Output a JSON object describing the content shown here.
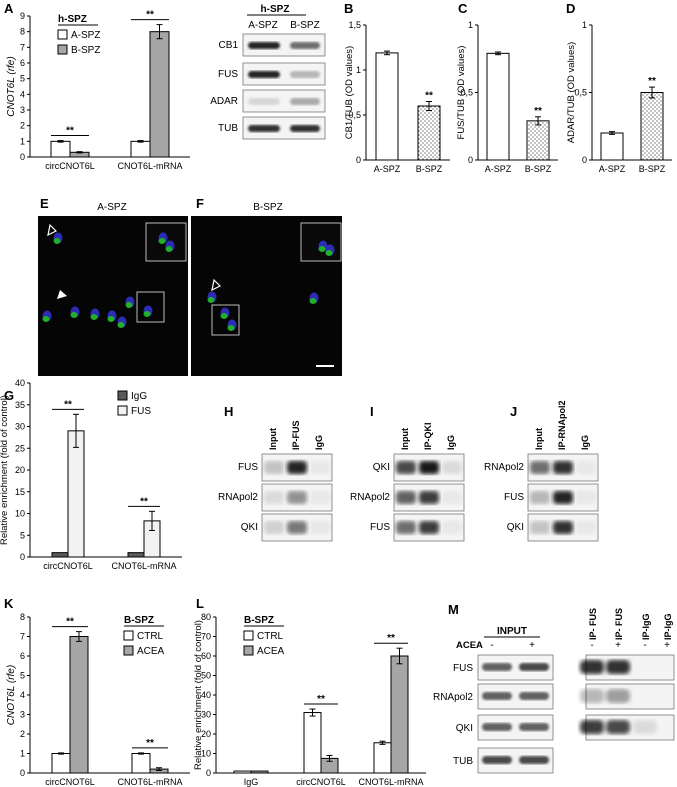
{
  "panel_letters": [
    "A",
    "B",
    "C",
    "D",
    "E",
    "F",
    "G",
    "H",
    "I",
    "J",
    "K",
    "L",
    "M"
  ],
  "colors": {
    "white_bar": "#ffffff",
    "grey_bar": "#a6a6a6",
    "dark_bar": "#595959",
    "light_bar": "#f2f2f2",
    "cell_blue": "#2c2cb4",
    "cell_green": "#1fbf1f"
  },
  "chart_data": [
    {
      "panel": "A",
      "type": "bar",
      "ylabel": "CNOT6L (rfe)",
      "ylim": [
        0,
        9
      ],
      "yticks": [
        0,
        1,
        2,
        3,
        4,
        5,
        6,
        7,
        8,
        9
      ],
      "legend_title": "h-SPZ",
      "categories": [
        "circCNOT6L",
        "CNOT6L-mRNA"
      ],
      "series": [
        {
          "name": "A-SPZ",
          "values": [
            1.0,
            1.0
          ],
          "err": [
            0.05,
            0.05
          ],
          "fill": "#ffffff"
        },
        {
          "name": "B-SPZ",
          "values": [
            0.3,
            8.0
          ],
          "err": [
            0.04,
            0.45
          ],
          "fill": "#a6a6a6"
        }
      ],
      "sig": [
        "**",
        "**"
      ]
    },
    {
      "panel": "B",
      "type": "bar",
      "ylabel": "CB1/TUB (OD values)",
      "ylim": [
        0,
        1.5
      ],
      "yticks": [
        "0",
        "0,5",
        "1",
        "1,5"
      ],
      "ytick_vals": [
        0,
        0.5,
        1,
        1.5
      ],
      "categories": [
        "A-SPZ",
        "B-SPZ"
      ],
      "values": [
        1.19,
        0.6
      ],
      "err": [
        0.02,
        0.05
      ],
      "pattern": [
        "plain",
        "dotted"
      ],
      "sig": [
        "",
        "**"
      ]
    },
    {
      "panel": "C",
      "type": "bar",
      "ylabel": "FUS/TUB (OD values)",
      "ylim": [
        0,
        1
      ],
      "yticks": [
        "0",
        "0,5",
        "1"
      ],
      "ytick_vals": [
        0,
        0.5,
        1
      ],
      "categories": [
        "A-SPZ",
        "B-SPZ"
      ],
      "values": [
        0.79,
        0.29
      ],
      "err": [
        0.01,
        0.03
      ],
      "pattern": [
        "plain",
        "dotted"
      ],
      "sig": [
        "",
        "**"
      ]
    },
    {
      "panel": "D",
      "type": "bar",
      "ylabel": "ADAR/TUB (OD values)",
      "ylim": [
        0,
        1
      ],
      "yticks": [
        "0",
        "0,5",
        "1"
      ],
      "ytick_vals": [
        0,
        0.5,
        1
      ],
      "categories": [
        "A-SPZ",
        "B-SPZ"
      ],
      "values": [
        0.2,
        0.5
      ],
      "err": [
        0.01,
        0.04
      ],
      "pattern": [
        "plain",
        "dotted"
      ],
      "sig": [
        "",
        "**"
      ]
    },
    {
      "panel": "G",
      "type": "bar",
      "ylabel": "Relative enrichment (fold of control)",
      "ylim": [
        0,
        40
      ],
      "yticks": [
        0,
        5,
        10,
        15,
        20,
        25,
        30,
        35,
        40
      ],
      "categories": [
        "circCNOT6L",
        "CNOT6L-mRNA"
      ],
      "series": [
        {
          "name": "IgG",
          "values": [
            1.0,
            1.0
          ],
          "err": [
            0,
            0
          ],
          "fill": "#595959"
        },
        {
          "name": "FUS",
          "values": [
            29,
            8.3
          ],
          "err": [
            3.8,
            2.2
          ],
          "fill": "#f2f2f2"
        }
      ],
      "sig": [
        "**",
        "**"
      ]
    },
    {
      "panel": "K",
      "type": "bar",
      "ylabel": "CNOT6L (rfe)",
      "ylim": [
        0,
        8
      ],
      "yticks": [
        0,
        1,
        2,
        3,
        4,
        5,
        6,
        7,
        8
      ],
      "legend_title": "B-SPZ",
      "categories": [
        "circCNOT6L",
        "CNOT6L-mRNA"
      ],
      "series": [
        {
          "name": "CTRL",
          "values": [
            1.0,
            1.0
          ],
          "err": [
            0.03,
            0.03
          ],
          "fill": "#ffffff"
        },
        {
          "name": "ACEA",
          "values": [
            7.0,
            0.2
          ],
          "err": [
            0.25,
            0.07
          ],
          "fill": "#a6a6a6"
        }
      ],
      "sig": [
        "**",
        "**"
      ]
    },
    {
      "panel": "L",
      "type": "bar",
      "ylabel": "Relative enrichment (fold of control)",
      "ylim": [
        0,
        80
      ],
      "yticks": [
        0,
        10,
        20,
        30,
        40,
        50,
        60,
        70,
        80
      ],
      "legend_title": "B-SPZ",
      "categories": [
        "IgG",
        "circCNOT6L",
        "CNOT6L-mRNA"
      ],
      "series": [
        {
          "name": "CTRL",
          "values": [
            1.0,
            31,
            15.5
          ],
          "err": [
            0,
            1.8,
            0.8
          ],
          "fill": "#ffffff"
        },
        {
          "name": "ACEA",
          "values": [
            1.0,
            7.5,
            60
          ],
          "err": [
            0,
            1.5,
            4
          ],
          "fill": "#a6a6a6"
        }
      ],
      "sig": [
        "",
        "**",
        "**"
      ]
    }
  ],
  "blot_A": {
    "title": "h-SPZ",
    "cols": [
      "A-SPZ",
      "B-SPZ"
    ],
    "rows": [
      "CB1",
      "FUS",
      "ADAR",
      "TUB"
    ]
  },
  "blot_H": {
    "cols": [
      "Input",
      "IP-FUS",
      "IgG"
    ],
    "rows": [
      "FUS",
      "RNApol2",
      "QKI"
    ]
  },
  "blot_I": {
    "cols": [
      "Input",
      "IP-QKI",
      "IgG"
    ],
    "rows": [
      "QKI",
      "RNApol2",
      "FUS"
    ]
  },
  "blot_J": {
    "cols": [
      "Input",
      "IP-RNApol2",
      "IgG"
    ],
    "rows": [
      "RNApol2",
      "FUS",
      "QKI"
    ]
  },
  "blot_M": {
    "input_label": "INPUT",
    "acea_label": "ACEA",
    "input_signs": [
      "-",
      "+"
    ],
    "ip_cols": [
      "IP- FUS",
      "IP- FUS",
      "IP-IgG",
      "IP-IgG"
    ],
    "ip_signs": [
      "-",
      "+",
      "-",
      "+"
    ],
    "rows": [
      "FUS",
      "RNApol2",
      "QKI",
      "TUB"
    ]
  },
  "micro": {
    "E_title": "A-SPZ",
    "F_title": "B-SPZ"
  }
}
